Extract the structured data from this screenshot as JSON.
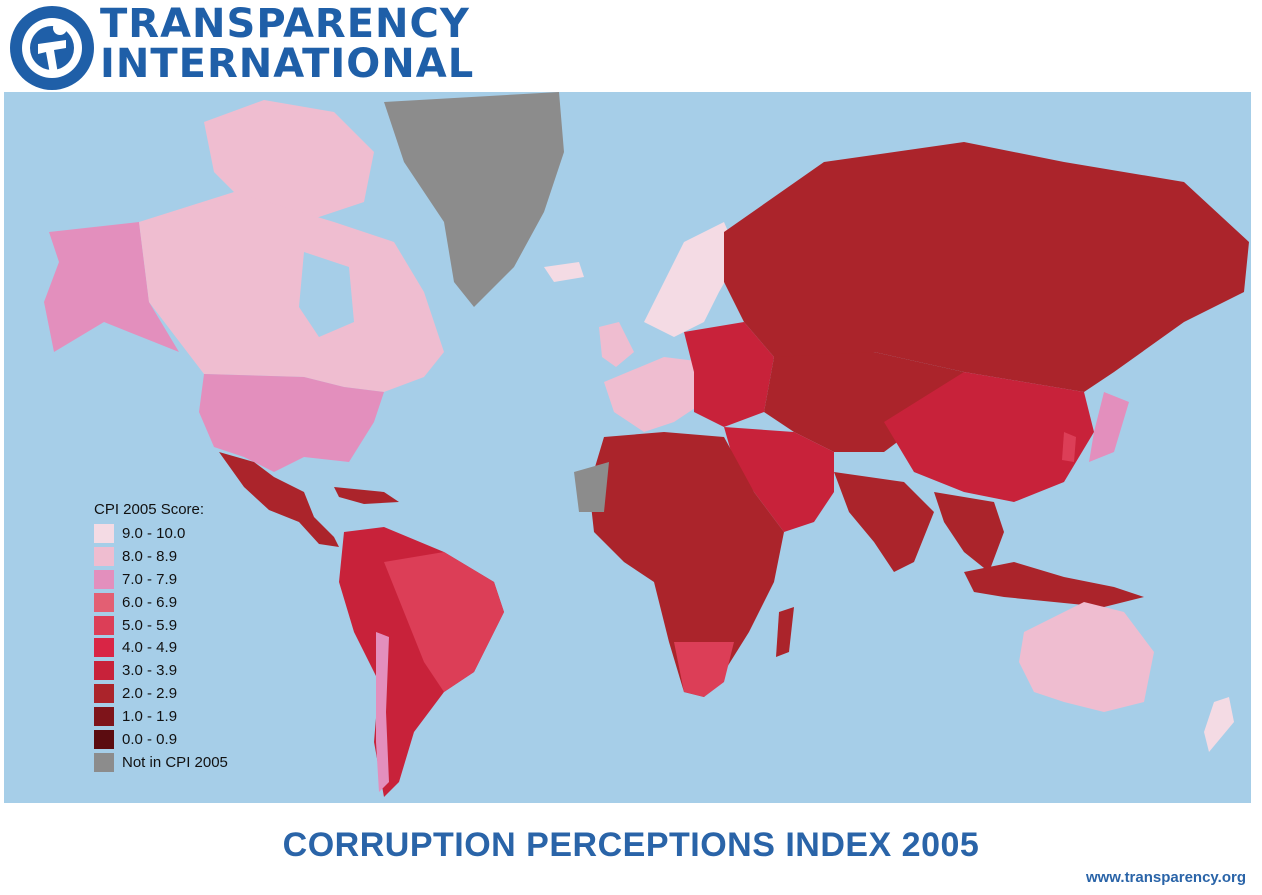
{
  "header": {
    "logo_line1": "TRANSPARENCY",
    "logo_line2": "INTERNATIONAL",
    "logo_color": "#1f5fa8"
  },
  "map": {
    "ocean_color": "#a6cee8",
    "not_in_cpi_color": "#8c8c8c"
  },
  "legend": {
    "title": "CPI 2005 Score:",
    "items": [
      {
        "label": "9.0 - 10.0",
        "color": "#f4dbe4"
      },
      {
        "label": "8.0 - 8.9",
        "color": "#efbdd0"
      },
      {
        "label": "7.0 - 7.9",
        "color": "#e38fbd"
      },
      {
        "label": "6.0 - 6.9",
        "color": "#e35f73"
      },
      {
        "label": "5.0 - 5.9",
        "color": "#dc3e57"
      },
      {
        "label": "4.0 - 4.9",
        "color": "#d92545"
      },
      {
        "label": "3.0 - 3.9",
        "color": "#c8223a"
      },
      {
        "label": "2.0 - 2.9",
        "color": "#ab242b"
      },
      {
        "label": "1.0 - 1.9",
        "color": "#7e141a"
      },
      {
        "label": "0.0 - 0.9",
        "color": "#5b0c10"
      },
      {
        "label": "Not in CPI 2005",
        "color": "#8c8c8c"
      }
    ]
  },
  "footer": {
    "title": "CORRUPTION PERCEPTIONS INDEX 2005",
    "url": "www.transparency.org"
  }
}
